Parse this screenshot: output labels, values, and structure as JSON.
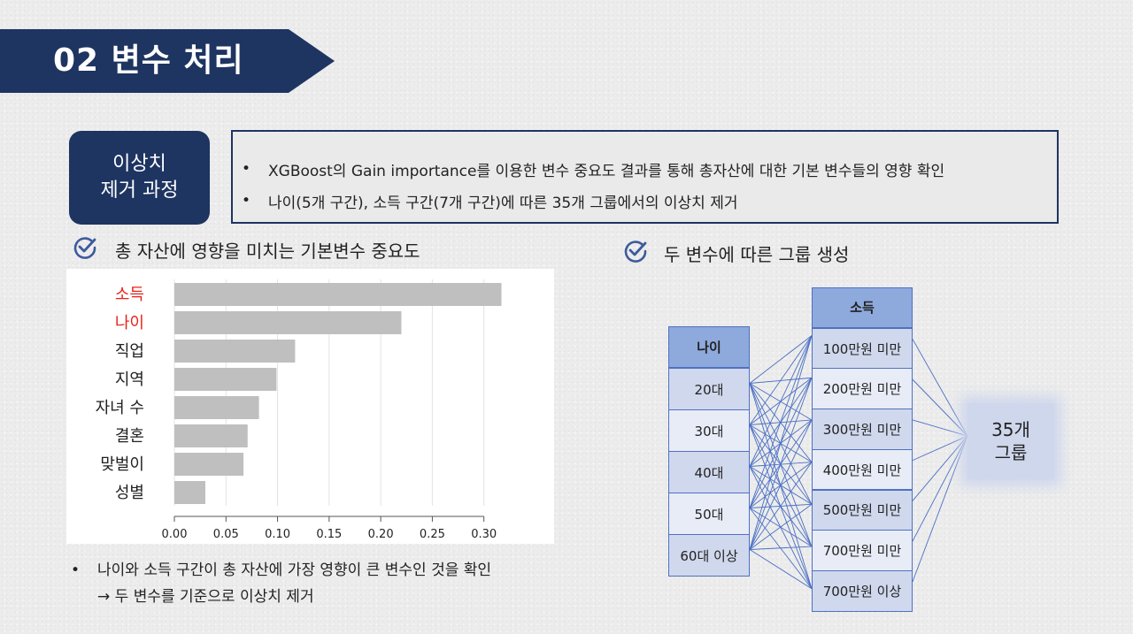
{
  "header": {
    "title": "02  변수 처리"
  },
  "badge": {
    "line1": "이상치",
    "line2": "제거 과정"
  },
  "info": {
    "bullet": "•",
    "items": [
      "XGBoost의 Gain importance를 이용한 변수 중요도 결과를 통해 총자산에 대한 기본 변수들의 영향 확인",
      "나이(5개 구간), 소득 구간(7개 구간)에 따른 35개 그룹에서의 이상치 제거"
    ]
  },
  "left_section": {
    "title": "총 자산에 영향을 미치는 기본변수 중요도"
  },
  "right_section": {
    "title": "두 변수에 따른 그룹 생성"
  },
  "chart_data": {
    "type": "bar",
    "orientation": "horizontal",
    "categories": [
      "소득",
      "나이",
      "직업",
      "지역",
      "자녀 수",
      "결혼",
      "맞벌이",
      "성별"
    ],
    "values": [
      0.317,
      0.22,
      0.117,
      0.099,
      0.082,
      0.071,
      0.067,
      0.03
    ],
    "highlighted": [
      "소득",
      "나이"
    ],
    "highlight_color": "#e8221b",
    "bar_color": "#bfbfbf",
    "xlim": [
      0,
      0.32
    ],
    "xticks": [
      "0.00",
      "0.05",
      "0.10",
      "0.15",
      "0.20",
      "0.25",
      "0.30"
    ],
    "grid": true
  },
  "note": {
    "bullet": "•",
    "line1": "나이와 소득 구간이 총 자산에 가장 영향이 큰 변수인 것을 확인",
    "line2": "→ 두 변수를 기준으로 이상치 제거"
  },
  "diagram": {
    "age_header": "나이",
    "age_groups": [
      "20대",
      "30대",
      "40대",
      "50대",
      "60대 이상"
    ],
    "income_header": "소득",
    "income_groups": [
      "100만원 미만",
      "200만원 미만",
      "300만원 미만",
      "400만원 미만",
      "500만원 미만",
      "700만원 미만",
      "700만원 이상"
    ],
    "result_count": "35개",
    "result_label": "그룹",
    "line_color": "#4a6fc4"
  },
  "colors": {
    "navy": "#1e3461",
    "check": "#3d5a9c"
  }
}
